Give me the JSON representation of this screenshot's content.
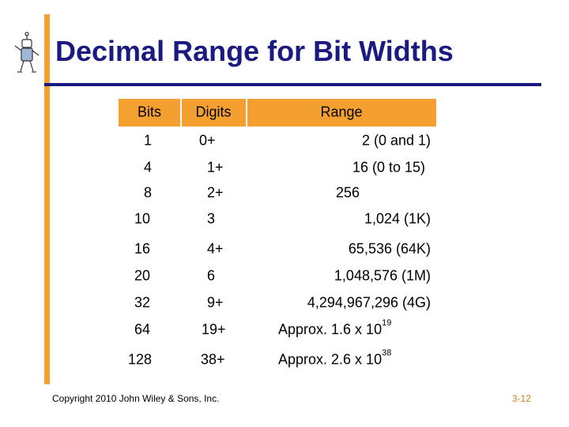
{
  "header": {
    "title": "Decimal Range for Bit Widths"
  },
  "table": {
    "columns": [
      "Bits",
      "Digits",
      "Range"
    ],
    "rows": [
      [
        "1",
        "0+",
        {
          "text": "2 (0 and 1)"
        }
      ],
      [
        "4",
        "1+",
        {
          "text": "16 (0 to 15)"
        }
      ],
      [
        "8",
        "2+",
        {
          "text": "256"
        }
      ],
      [
        "10",
        "3",
        {
          "text": "1,024 (1K)"
        }
      ],
      [
        "16",
        "4+",
        {
          "text": "65,536 (64K)"
        }
      ],
      [
        "20",
        "6",
        {
          "text": "1,048,576 (1M)"
        }
      ],
      [
        "32",
        "9+",
        {
          "text": "4,294,967,296 (4G)"
        }
      ],
      [
        "64",
        "19+",
        {
          "text": "Approx. 1.6 x 10",
          "sup": "19"
        }
      ],
      [
        "128",
        "38+",
        {
          "text": "Approx. 2.6 x 10",
          "sup": "38"
        }
      ]
    ]
  },
  "footer": {
    "copyright": "Copyright 2010 John Wiley & Sons, Inc.",
    "page": "3-12"
  }
}
